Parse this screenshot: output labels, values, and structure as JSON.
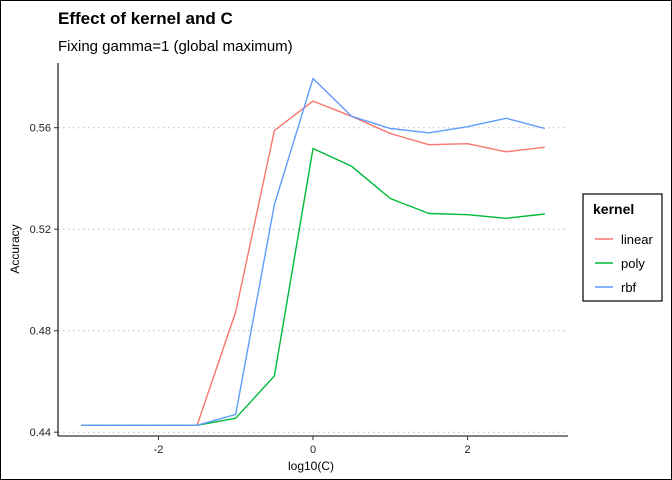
{
  "chart_data": {
    "type": "line",
    "title": "Effect of kernel and C",
    "subtitle": "Fixing gamma=1 (global maximum)",
    "xlabel": "log10(C)",
    "ylabel": "Accuracy",
    "xlim": [
      -3.3,
      3.3
    ],
    "ylim": [
      0.4385,
      0.5855
    ],
    "x_ticks": [
      -2,
      0,
      2
    ],
    "x_tick_labels": [
      "-2",
      "0",
      "2"
    ],
    "y_ticks": [
      0.44,
      0.48,
      0.52,
      0.56
    ],
    "y_tick_labels": [
      "0.44",
      "0.48",
      "0.52",
      "0.56"
    ],
    "grid": "dotted horizontal major lines",
    "legend_position": "right",
    "legend_title": "kernel",
    "x": [
      -3,
      -2.5,
      -2,
      -1.5,
      -1,
      -0.5,
      0,
      0.5,
      1,
      1.5,
      2,
      2.5,
      3
    ],
    "series": [
      {
        "name": "linear",
        "color": "#F8766D",
        "values": [
          0.4427,
          0.4427,
          0.4427,
          0.4427,
          0.4874,
          0.5589,
          0.5705,
          0.5645,
          0.5577,
          0.5533,
          0.5537,
          0.5505,
          0.5523
        ]
      },
      {
        "name": "poly",
        "color": "#00BA38",
        "values": [
          0.4427,
          0.4427,
          0.4427,
          0.4427,
          0.4455,
          0.4622,
          0.5518,
          0.5448,
          0.5321,
          0.5262,
          0.5257,
          0.5243,
          0.526
        ]
      },
      {
        "name": "rbf",
        "color": "#619CFF",
        "values": [
          0.4427,
          0.4427,
          0.4427,
          0.4427,
          0.447,
          0.5297,
          0.5794,
          0.5645,
          0.5597,
          0.558,
          0.5604,
          0.5637,
          0.5597
        ]
      }
    ]
  }
}
